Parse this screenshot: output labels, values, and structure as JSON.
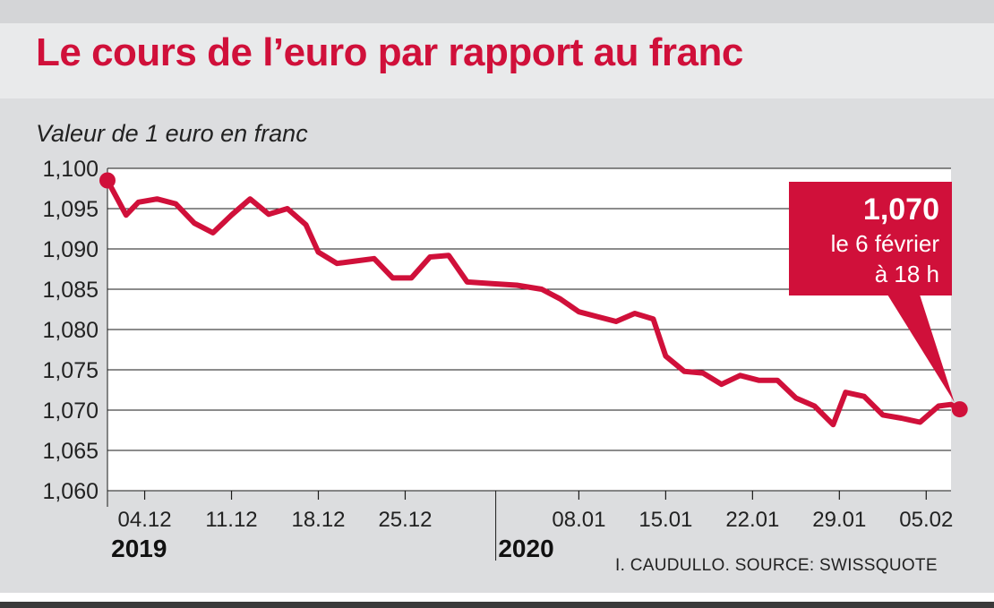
{
  "title": "Le cours de l’euro par rapport au franc",
  "source": "I. CAUDULLO. SOURCE: SWISSQUOTE",
  "colors": {
    "accent": "#d0103a",
    "plot_bg": "#ffffff",
    "panel_bg": "#dcdddf",
    "header_bg": "#e9eaeb"
  },
  "chart_data": {
    "type": "line",
    "ylabel": "Valeur de 1 euro en franc",
    "ylim": [
      1.06,
      1.1
    ],
    "yticks": [
      1.06,
      1.065,
      1.07,
      1.075,
      1.08,
      1.085,
      1.09,
      1.095,
      1.1
    ],
    "ytick_labels": [
      "1,060",
      "1,065",
      "1,070",
      "1,075",
      "1,080",
      "1,085",
      "1,090",
      "1,095",
      "1,100"
    ],
    "xlim": [
      0,
      68
    ],
    "xticks": [
      {
        "x": 3,
        "label": "04.12"
      },
      {
        "x": 10,
        "label": "11.12"
      },
      {
        "x": 17,
        "label": "18.12"
      },
      {
        "x": 24,
        "label": "25.12"
      },
      {
        "x": 38,
        "label": "08.01"
      },
      {
        "x": 45,
        "label": "15.01"
      },
      {
        "x": 52,
        "label": "22.01"
      },
      {
        "x": 59,
        "label": "29.01"
      },
      {
        "x": 66,
        "label": "05.02"
      }
    ],
    "year_labels": [
      {
        "x": 0.3,
        "label": "2019"
      },
      {
        "x": 31.5,
        "label": "2020"
      }
    ],
    "year_divider_x": 31.3,
    "grid": true,
    "series": [
      {
        "values": [
          [
            0,
            1.0985
          ],
          [
            1.5,
            1.0942
          ],
          [
            2.5,
            1.0958
          ],
          [
            4,
            1.0962
          ],
          [
            5.5,
            1.0956
          ],
          [
            7,
            1.0932
          ],
          [
            8.5,
            1.092
          ],
          [
            10,
            1.0942
          ],
          [
            11.5,
            1.0962
          ],
          [
            13,
            1.0943
          ],
          [
            14.5,
            1.095
          ],
          [
            16,
            1.093
          ],
          [
            17,
            1.0896
          ],
          [
            18.5,
            1.0882
          ],
          [
            20,
            1.0885
          ],
          [
            21.5,
            1.0888
          ],
          [
            23,
            1.0864
          ],
          [
            24.5,
            1.0864
          ],
          [
            26,
            1.089
          ],
          [
            27.5,
            1.0892
          ],
          [
            29,
            1.0859
          ],
          [
            31,
            1.0857
          ],
          [
            33,
            1.0855
          ],
          [
            35,
            1.085
          ],
          [
            36.5,
            1.0838
          ],
          [
            38,
            1.0822
          ],
          [
            39.5,
            1.0816
          ],
          [
            41,
            1.081
          ],
          [
            42.5,
            1.082
          ],
          [
            44,
            1.0813
          ],
          [
            45,
            1.0767
          ],
          [
            46.5,
            1.0748
          ],
          [
            48,
            1.0746
          ],
          [
            49.5,
            1.0732
          ],
          [
            51,
            1.0743
          ],
          [
            52.5,
            1.0737
          ],
          [
            54,
            1.0737
          ],
          [
            55.5,
            1.0715
          ],
          [
            57,
            1.0705
          ],
          [
            58.5,
            1.0682
          ],
          [
            59.5,
            1.0722
          ],
          [
            61,
            1.0717
          ],
          [
            62.5,
            1.0694
          ],
          [
            64,
            1.069
          ],
          [
            65.5,
            1.0685
          ],
          [
            67,
            1.0705
          ],
          [
            68,
            1.0707
          ],
          [
            68.7,
            1.0701
          ]
        ]
      }
    ],
    "annotation": {
      "value": "1,070",
      "line1": "le 6 février",
      "line2": "à 18 h",
      "point": [
        68.7,
        1.0701
      ]
    }
  }
}
